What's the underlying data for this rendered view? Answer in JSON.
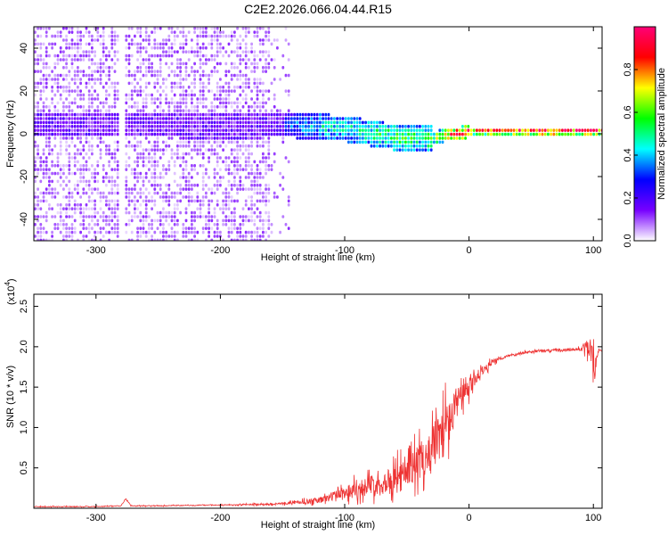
{
  "page": {
    "title": "C2E2.2026.066.04.44.R15"
  },
  "chart_data": [
    {
      "type": "heatmap",
      "xlabel": "Height of straight line (km)",
      "ylabel": "Frequency (Hz)",
      "xlim": [
        -350,
        107
      ],
      "ylim": [
        -50,
        50
      ],
      "x_ticks": [
        -300,
        -200,
        -100,
        0,
        100
      ],
      "x_tick_labels": [
        "-300",
        "-200",
        "-100",
        "0",
        "100"
      ],
      "y_ticks": [
        -40,
        -20,
        0,
        20,
        40
      ],
      "y_tick_labels": [
        "-40",
        "-20",
        "0",
        "20",
        "40"
      ],
      "colorbar": {
        "label": "Normalized spectral amplitude",
        "range": [
          0,
          1
        ],
        "ticks": [
          0.0,
          0.2,
          0.4,
          0.6,
          0.8
        ],
        "tick_labels": [
          "0.0",
          "0.2",
          "0.4",
          "0.6",
          "0.8"
        ],
        "colors": [
          "#ffffff",
          "#7700ff",
          "#0000ff",
          "#00ffff",
          "#00ff00",
          "#ffff00",
          "#ff0000",
          "#ff0077"
        ]
      },
      "ridge": {
        "x": [
          -290,
          -250,
          -200,
          -150,
          -120,
          -100,
          -80,
          -60,
          -40,
          -30,
          -20,
          -10,
          0,
          20,
          60,
          100,
          107
        ],
        "center_frequency_hz": [
          5,
          5,
          4,
          5,
          4,
          3,
          1,
          -1,
          -1,
          -1,
          0,
          1,
          2,
          2,
          2,
          2,
          2
        ],
        "normalized_amplitude": [
          0.15,
          0.15,
          0.15,
          0.3,
          0.45,
          0.45,
          0.5,
          0.55,
          0.5,
          0.6,
          0.7,
          0.85,
          0.85,
          0.9,
          0.95,
          0.95,
          0.95
        ]
      },
      "grid": false
    },
    {
      "type": "line",
      "xlabel": "Height of straight line (km)",
      "ylabel": "SNR (10 * v/v)",
      "y_scale_label": "(x10",
      "y_scale_exponent": "4",
      "xlim": [
        -350,
        107
      ],
      "ylim": [
        0,
        2.65
      ],
      "x_ticks": [
        -300,
        -200,
        -100,
        0,
        100
      ],
      "x_tick_labels": [
        "-300",
        "-200",
        "-100",
        "0",
        "100"
      ],
      "y_ticks": [
        0.5,
        1.0,
        1.5,
        2.0,
        2.5
      ],
      "y_tick_labels": [
        "0.5",
        "1.0",
        "1.5",
        "2.0",
        "2.5"
      ],
      "series": [
        {
          "color": "#ee3333",
          "x": [
            -350,
            -300,
            -280,
            -276,
            -272,
            -250,
            -200,
            -160,
            -140,
            -120,
            -110,
            -100,
            -90,
            -80,
            -70,
            -60,
            -50,
            -40,
            -30,
            -25,
            -20,
            -15,
            -10,
            0,
            10,
            20,
            30,
            40,
            50,
            60,
            70,
            80,
            90,
            95,
            98,
            100,
            104,
            107
          ],
          "y": [
            0.02,
            0.02,
            0.03,
            0.12,
            0.03,
            0.03,
            0.04,
            0.05,
            0.07,
            0.1,
            0.15,
            0.2,
            0.25,
            0.28,
            0.32,
            0.38,
            0.45,
            0.58,
            0.75,
            0.85,
            0.95,
            1.1,
            1.3,
            1.5,
            1.7,
            1.82,
            1.88,
            1.92,
            1.94,
            1.95,
            1.96,
            1.96,
            1.97,
            2.0,
            2.05,
            1.7,
            1.95,
            1.95
          ],
          "noise_amplitude": [
            0.01,
            0.01,
            0.01,
            0.02,
            0.01,
            0.01,
            0.01,
            0.02,
            0.04,
            0.08,
            0.12,
            0.18,
            0.22,
            0.25,
            0.28,
            0.32,
            0.38,
            0.5,
            0.6,
            0.65,
            0.7,
            0.55,
            0.4,
            0.25,
            0.12,
            0.06,
            0.04,
            0.03,
            0.03,
            0.03,
            0.03,
            0.03,
            0.04,
            0.2,
            0.5,
            0.4,
            0.05,
            0.03
          ]
        }
      ],
      "grid": false
    }
  ]
}
